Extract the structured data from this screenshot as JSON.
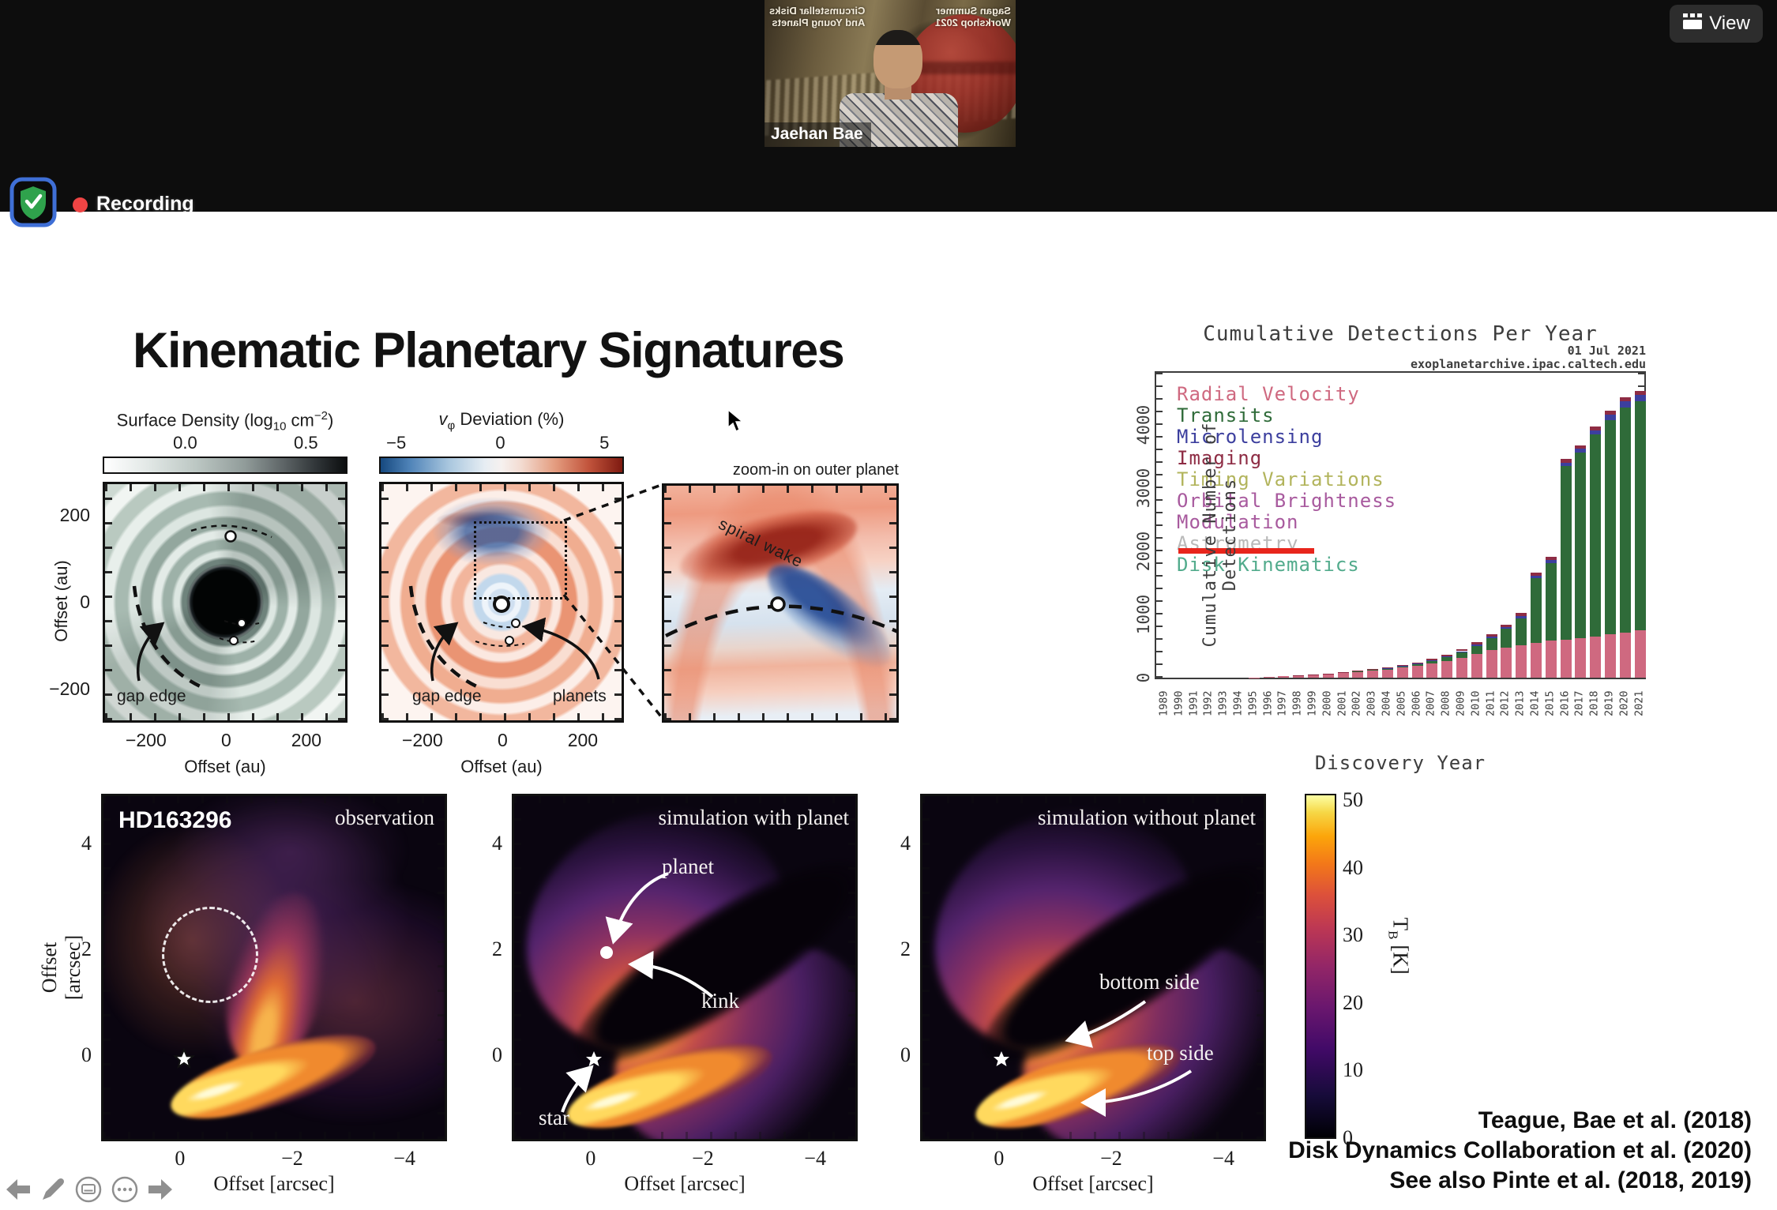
{
  "meeting": {
    "participant_name": "Jaehan Bae",
    "caption_left1": "Circumstellar Disks",
    "caption_left2": "And Young Planets",
    "caption_right1": "Sagan Summer",
    "caption_right2": "Workshop 2021",
    "recording_label": "Recording",
    "view_label": "View"
  },
  "slide": {
    "title": "Kinematic Planetary Signatures",
    "surface_density": {
      "title_prefix": "Surface Density (log",
      "title_sub": "10",
      "title_mid": " cm",
      "title_sup": "−2",
      "title_suffix": ")",
      "cb_ticks": [
        "0.0",
        "0.5"
      ],
      "y_ticks": [
        "200",
        "0",
        "−200"
      ],
      "x_ticks": [
        "−200",
        "0",
        "200"
      ],
      "x_label": "Offset (au)",
      "y_label": "Offset (au)",
      "gap_edge": "gap edge"
    },
    "vphi": {
      "title_prefix": "v",
      "title_sub": "φ",
      "title_suffix": " Deviation (%)",
      "cb_ticks": [
        "−5",
        "0",
        "5"
      ],
      "x_ticks": [
        "−200",
        "0",
        "200"
      ],
      "x_label": "Offset (au)",
      "gap_edge": "gap edge",
      "planets": "planets"
    },
    "zoom_in": {
      "title": "zoom-in on outer planet",
      "spiral_wake": "spiral wake"
    },
    "bottom": {
      "y_ticks": [
        "4",
        "2",
        "0"
      ],
      "x_ticks": [
        "0",
        "−2",
        "−4"
      ],
      "y_label": "Offset [arcsec]",
      "x_label": "Offset [arcsec]",
      "panel1_name": "HD163296",
      "panel1_title": "observation",
      "panel2_title": "simulation with planet",
      "panel3_title": "simulation without planet",
      "ann_planet": "planet",
      "ann_kink": "kink",
      "ann_star": "star",
      "ann_bottom_side": "bottom side",
      "ann_top_side": "top side",
      "colorbar_ticks": [
        "50",
        "40",
        "30",
        "20",
        "10",
        "0"
      ],
      "colorbar_label_main": "T",
      "colorbar_label_sub": "B",
      "colorbar_label_unit": " [K]"
    },
    "citations": [
      "Teague, Bae et al. (2018)",
      "Disk Dynamics Collaboration et al. (2020)",
      "See also Pinte et al. (2018, 2019)"
    ]
  },
  "chart_data": {
    "type": "bar",
    "stacked": true,
    "title": "Cumulative Detections Per Year",
    "date_note": "01 Jul 2021",
    "source_note": "exoplanetarchive.ipac.caltech.edu",
    "xlabel": "Discovery Year",
    "ylabel": "Cumulative Number of Detections",
    "y_ticks": [
      0,
      1000,
      2000,
      3000,
      4000
    ],
    "ylim": [
      0,
      4800
    ],
    "grid": false,
    "legend_position": "upper-left",
    "highlight_underline_color": "#e8251c",
    "legend": [
      {
        "label": "Radial Velocity",
        "color": "#cf6980"
      },
      {
        "label": "Transits",
        "color": "#2f6b39"
      },
      {
        "label": "Microlensing",
        "color": "#3c3f9e"
      },
      {
        "label": "Imaging",
        "color": "#8e2c44"
      },
      {
        "label": "Timing Variations",
        "color": "#b2b45c"
      },
      {
        "label": "Orbital Brightness",
        "color": "#a85a9e"
      },
      {
        "label": "Modulation",
        "color": "#a85a9e"
      },
      {
        "label": "Astrometry",
        "color": "#b9b9b9"
      },
      {
        "label": "Disk Kinematics",
        "color": "#52ab8c"
      }
    ],
    "years": [
      1989,
      1990,
      1991,
      1992,
      1993,
      1994,
      1995,
      1996,
      1997,
      1998,
      1999,
      2000,
      2001,
      2002,
      2003,
      2004,
      2005,
      2006,
      2007,
      2008,
      2009,
      2010,
      2011,
      2012,
      2013,
      2014,
      2015,
      2016,
      2017,
      2018,
      2019,
      2020,
      2021
    ],
    "series": [
      {
        "name": "Radial Velocity",
        "color": "#cf6980",
        "values": [
          1,
          1,
          1,
          2,
          2,
          3,
          6,
          16,
          24,
          32,
          42,
          55,
          72,
          95,
          112,
          132,
          160,
          185,
          220,
          262,
          315,
          378,
          432,
          472,
          512,
          552,
          582,
          602,
          626,
          652,
          682,
          716,
          752
        ]
      },
      {
        "name": "Transits",
        "color": "#2f6b39",
        "values": [
          0,
          0,
          0,
          0,
          0,
          0,
          0,
          0,
          0,
          0,
          1,
          2,
          3,
          5,
          8,
          12,
          18,
          28,
          45,
          65,
          88,
          128,
          192,
          298,
          428,
          1022,
          1232,
          2744,
          2934,
          3194,
          3394,
          3564,
          3624
        ]
      },
      {
        "name": "Microlensing",
        "color": "#3c3f9e",
        "values": [
          0,
          0,
          0,
          0,
          0,
          0,
          0,
          0,
          0,
          0,
          0,
          0,
          1,
          2,
          3,
          4,
          6,
          8,
          10,
          13,
          16,
          20,
          25,
          30,
          36,
          42,
          48,
          55,
          63,
          72,
          82,
          92,
          102
        ]
      },
      {
        "name": "Imaging",
        "color": "#8e2c44",
        "values": [
          0,
          0,
          0,
          2,
          2,
          2,
          2,
          2,
          3,
          4,
          4,
          5,
          6,
          8,
          10,
          12,
          14,
          17,
          21,
          25,
          30,
          34,
          38,
          42,
          46,
          50,
          53,
          56,
          58,
          60,
          62,
          64,
          66
        ]
      }
    ]
  }
}
